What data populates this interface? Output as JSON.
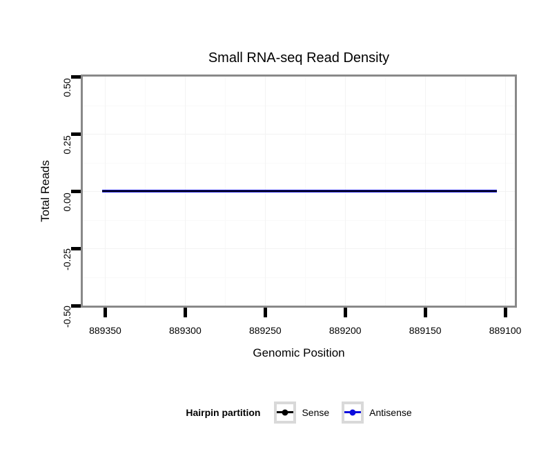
{
  "chart_data": {
    "type": "line",
    "title": "Small RNA-seq Read Density",
    "xlabel": "Genomic Position",
    "ylabel": "Total Reads",
    "xlim": [
      889364,
      889094
    ],
    "ylim": [
      -0.5,
      0.5
    ],
    "x_axis_reversed": true,
    "grid": true,
    "x_tick_values": [
      889350,
      889300,
      889250,
      889200,
      889150,
      889100
    ],
    "x_tick_labels": [
      "889350",
      "889300",
      "889250",
      "889200",
      "889150",
      "889100"
    ],
    "y_tick_values": [
      0.5,
      0.25,
      0,
      -0.25,
      -0.5
    ],
    "y_tick_labels": [
      "0.50",
      "0.25",
      "0.00",
      "-0.25",
      "-0.50"
    ],
    "series": [
      {
        "name": "Sense",
        "color": "#000000",
        "linewidth": 2,
        "zorder": 2,
        "x": [
          889352,
          889105
        ],
        "y": [
          0,
          0
        ]
      },
      {
        "name": "Antisense",
        "color": "#0d0ddd",
        "linewidth": 4,
        "zorder": 1,
        "x": [
          889352,
          889105
        ],
        "y": [
          0,
          0
        ]
      }
    ],
    "legend": {
      "title": "Hairpin partition",
      "position": "bottom",
      "entries": [
        {
          "label": "Sense",
          "color": "#000000"
        },
        {
          "label": "Antisense",
          "color": "#0d0ddd"
        }
      ]
    },
    "colors": {
      "panel_border": "#898989",
      "tick": "#000000",
      "grid_major": "#f3f3f3",
      "grid_minor": "#f9f9f9",
      "legend_key_border": "#d9d9d9"
    }
  }
}
